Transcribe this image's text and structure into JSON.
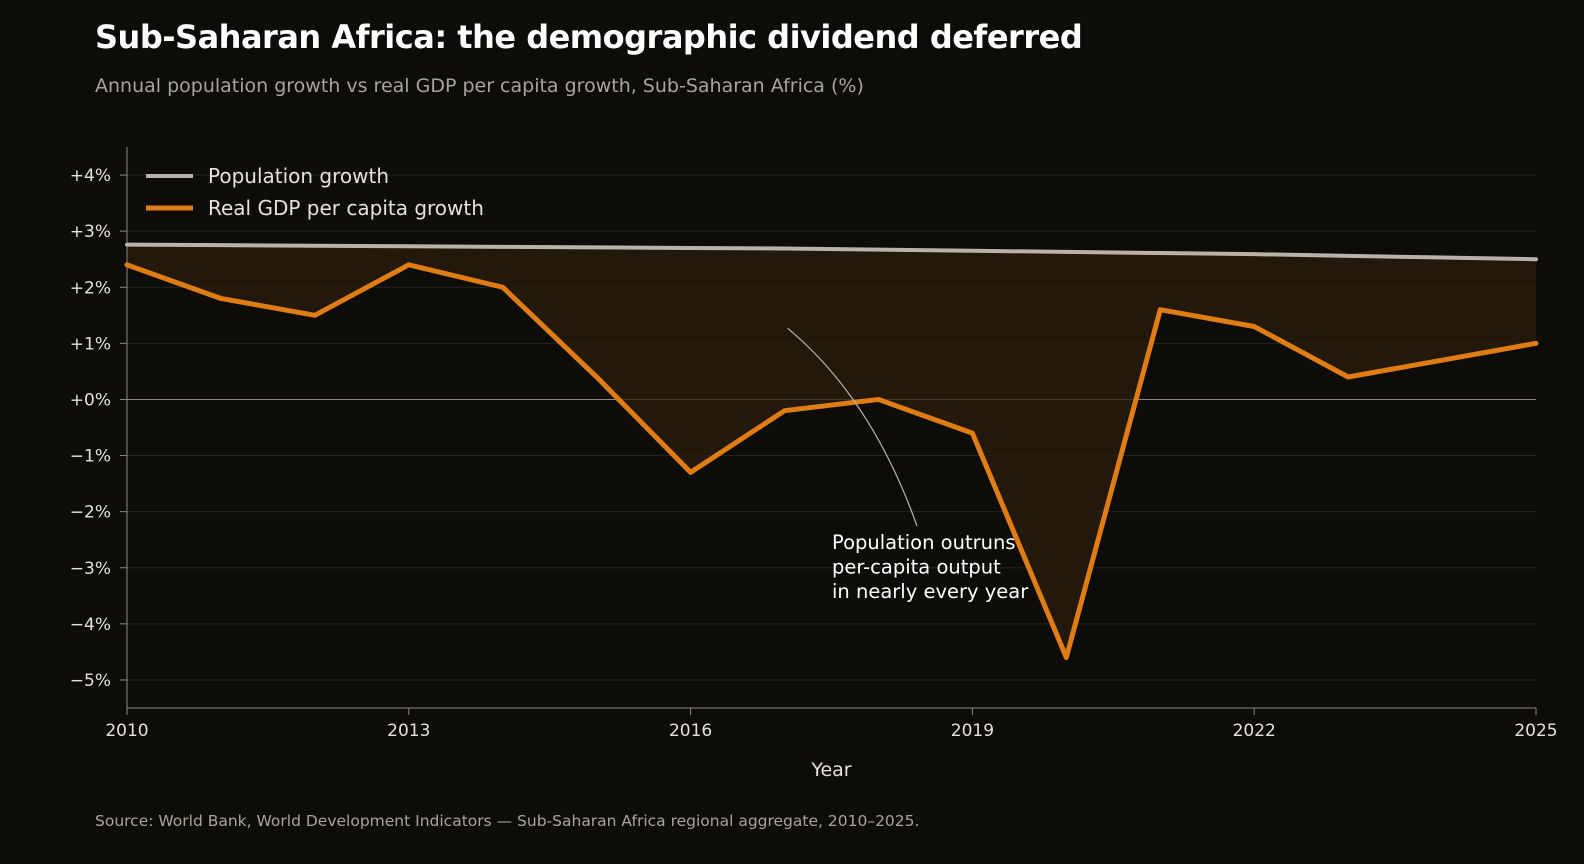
{
  "title": "Sub-Saharan Africa: the demographic dividend deferred",
  "subtitle": "Annual population growth vs real GDP per capita growth, Sub-Saharan Africa (%)",
  "source": "Source: World Bank, World Development Indicators — Sub-Saharan Africa regional aggregate, 2010–2025.",
  "colors": {
    "background": "#0e0c09",
    "population": "#b8b2aa",
    "gdp": "#e07c14",
    "gap_fill": "#2a1e0d"
  },
  "chart_data": {
    "type": "line",
    "x": [
      2010,
      2011,
      2012,
      2013,
      2014,
      2015,
      2016,
      2017,
      2018,
      2019,
      2020,
      2021,
      2022,
      2023,
      2024,
      2025
    ],
    "series": [
      {
        "name": "Population growth",
        "values": [
          2.76,
          2.75,
          2.74,
          2.73,
          2.72,
          2.71,
          2.7,
          2.69,
          2.67,
          2.65,
          2.63,
          2.61,
          2.59,
          2.56,
          2.53,
          2.5
        ]
      },
      {
        "name": "Real GDP per capita growth",
        "values": [
          2.4,
          1.8,
          1.5,
          2.4,
          2.0,
          0.4,
          -1.3,
          -0.2,
          0.0,
          -0.6,
          -4.6,
          1.6,
          1.3,
          0.4,
          0.7,
          1.0
        ]
      }
    ],
    "xlabel": "Year",
    "ylabel": "",
    "xlim": [
      2010,
      2025
    ],
    "ylim": [
      -5.5,
      4.5
    ],
    "x_ticks": [
      2010,
      2013,
      2016,
      2019,
      2022,
      2025
    ],
    "x_tick_labels": [
      "2010",
      "2013",
      "2016",
      "2019",
      "2022",
      "2025"
    ],
    "y_ticks": [
      4,
      3,
      2,
      1,
      0,
      -1,
      -2,
      -3,
      -4,
      -5
    ],
    "y_tick_labels": [
      "+4%",
      "+3%",
      "+2%",
      "+1%",
      "+0%",
      "−1%",
      "−2%",
      "−3%",
      "−4%",
      "−5%"
    ],
    "grid": true,
    "legend": "top-left",
    "annotation": {
      "lines": [
        "Population outruns",
        "per-capita output",
        "in nearly every year"
      ],
      "points_to_year": 2017
    }
  }
}
